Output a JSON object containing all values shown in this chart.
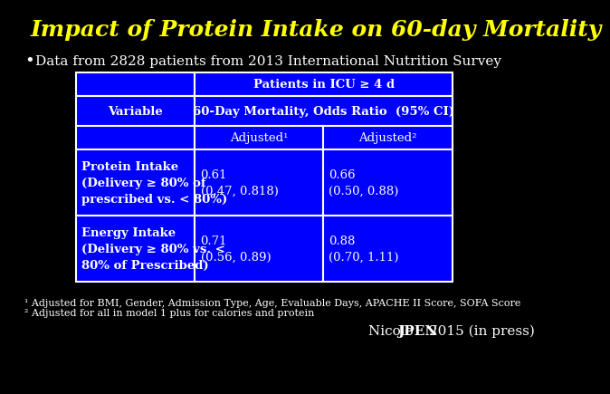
{
  "title": "Impact of Protein Intake on 60-day Mortality",
  "title_color": "#FFFF00",
  "background_color": "#000000",
  "bullet_text": "Data from 2828 patients from 2013 International Nutrition Survey",
  "table_bg": "#0000FF",
  "table_border": "#FFFFFF",
  "header1": "Patients in ICU ≥ 4 d",
  "header2": "Variable",
  "header3": "60-Day Mortality, Odds Ratio  (95% CI)",
  "subheader_adj1": "Adjusted¹",
  "subheader_adj2": "Adjusted²",
  "row1_label": "Protein Intake\n(Delivery ≥ 80% of\nprescribed vs. < 80%)",
  "row1_adj1": "0.61\n(0.47, 0.818)",
  "row1_adj2": "0.66\n(0.50, 0.88)",
  "row2_label": "Energy Intake\n(Delivery ≥ 80% vs. <\n80% of Prescribed)",
  "row2_adj1": "0.71\n(0.56, 0.89)",
  "row2_adj2": "0.88\n(0.70, 1.11)",
  "footnote1": "¹ Adjusted for BMI, Gender, Admission Type, Age, Evaluable Days, APACHE II Score, SOFA Score",
  "footnote2": "² Adjusted for all in model 1 plus for calories and protein",
  "citation_normal": "Nicolo ",
  "citation_bold": "JPEN",
  "citation_end": " 2015 (in press)"
}
